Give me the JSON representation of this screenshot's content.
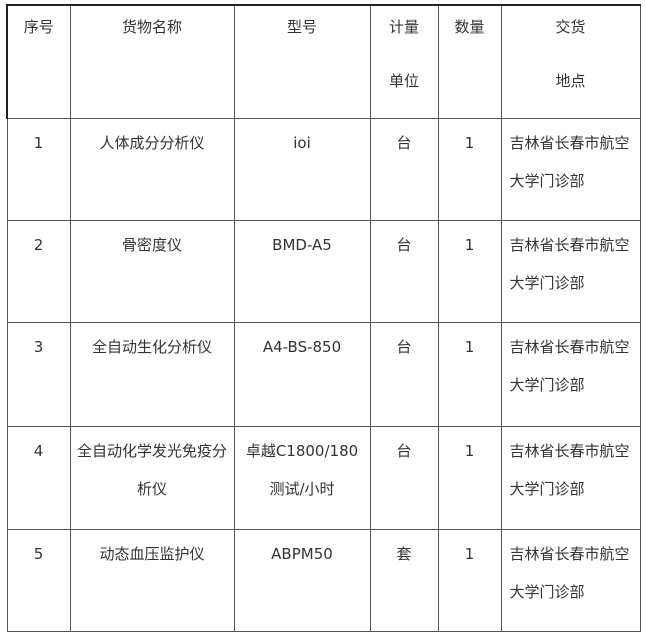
{
  "header": {
    "index": "序号",
    "name": "货物名称",
    "model": "型号",
    "unit": [
      "计量",
      "单位"
    ],
    "qty": "数量",
    "location": [
      "交货",
      "地点"
    ]
  },
  "rows": [
    {
      "index": "1",
      "name": "人体成分分析仪",
      "model": "ioi",
      "unit": "台",
      "qty": "1",
      "location": "吉林省长春市航空大学门诊部"
    },
    {
      "index": "2",
      "name": "骨密度仪",
      "model": "BMD-A5",
      "unit": "台",
      "qty": "1",
      "location": "吉林省长春市航空大学门诊部"
    },
    {
      "index": "3",
      "name": "全自动生化分析仪",
      "model": "A4-BS-850",
      "unit": "台",
      "qty": "1",
      "location": "吉林省长春市航空大学门诊部"
    },
    {
      "index": "4",
      "name": "全自动化学发光免疫分析仪",
      "model": "卓越C1800/180测试/小时",
      "unit": "台",
      "qty": "1",
      "location": "吉林省长春市航空大学门诊部"
    },
    {
      "index": "5",
      "name": "动态血压监护仪",
      "model": "ABPM50",
      "unit": "套",
      "qty": "1",
      "location": "吉林省长春市航空大学门诊部"
    }
  ]
}
